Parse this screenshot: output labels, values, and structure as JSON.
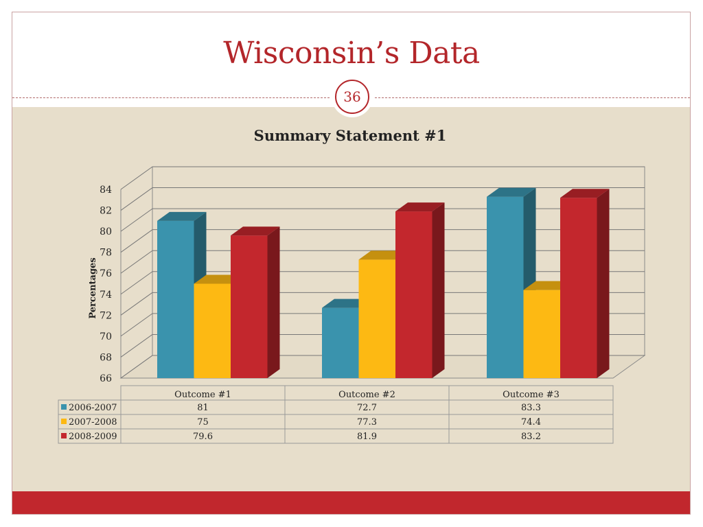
{
  "slide": {
    "title": "Wisconsin’s Data",
    "number": "36"
  },
  "colors": {
    "accent_red": "#b3262a",
    "background_tan": "#e7decb",
    "footer_red": "#c1272d"
  },
  "chart_data": {
    "type": "bar",
    "title": "Summary Statement #1",
    "ylabel": "Percentages",
    "xlabel": "",
    "ylim": [
      66,
      84
    ],
    "yticks": [
      66,
      68,
      70,
      72,
      74,
      76,
      78,
      80,
      82,
      84
    ],
    "categories": [
      "Outcome #1",
      "Outcome #2",
      "Outcome #3"
    ],
    "series": [
      {
        "name": "2006-2007",
        "values": [
          81,
          72.7,
          83.3
        ],
        "color": "#3a93ad"
      },
      {
        "name": "2007-2008",
        "values": [
          75,
          77.3,
          74.4
        ],
        "color": "#fdb913"
      },
      {
        "name": "2008-2009",
        "values": [
          79.6,
          81.9,
          83.2
        ],
        "color": "#c3272d"
      }
    ],
    "data_table": true,
    "grid": true,
    "style": "3d"
  }
}
